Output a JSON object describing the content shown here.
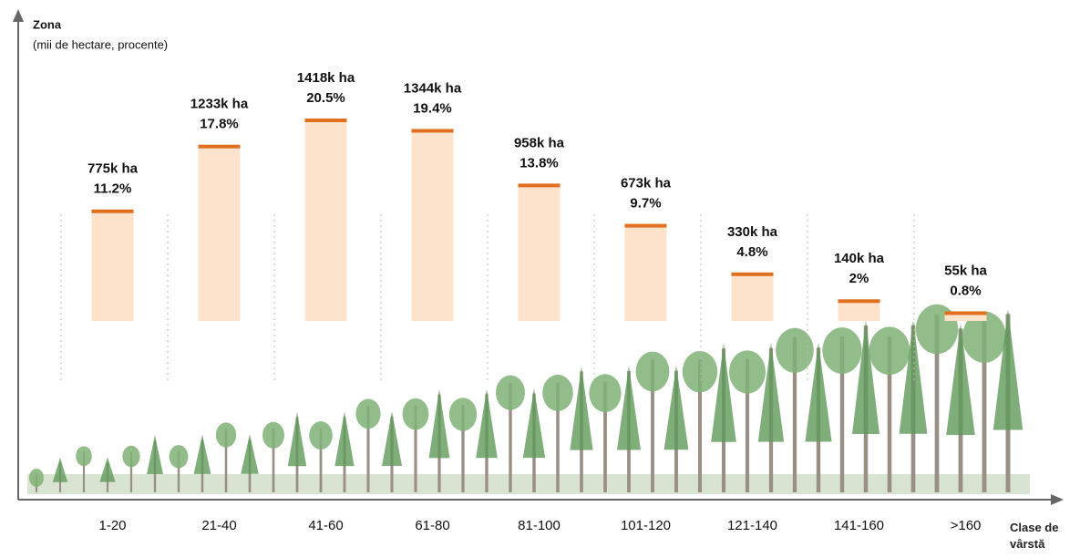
{
  "chart_data": {
    "type": "bar",
    "title": "Zona",
    "subtitle": "(mii de hectare, procente)",
    "xlabel": "Clase de vârstă",
    "categories": [
      "1-20",
      "21-40",
      "41-60",
      "61-80",
      "81-100",
      "101-120",
      "121-140",
      "141-160",
      ">160"
    ],
    "values": [
      775,
      1233,
      1418,
      1344,
      958,
      673,
      330,
      140,
      55
    ],
    "value_labels": [
      "775k ha",
      "1233k ha",
      "1418k ha",
      "1344k ha",
      "958k ha",
      "673k ha",
      "330k ha",
      "140k ha",
      "55k ha"
    ],
    "percentages": [
      11.2,
      17.8,
      20.5,
      19.4,
      13.8,
      9.7,
      4.8,
      2,
      0.8
    ],
    "percentage_labels": [
      "11.2%",
      "17.8%",
      "20.5%",
      "19.4%",
      "13.8%",
      "9.7%",
      "4.8%",
      "2%",
      "0.8%"
    ],
    "color": "#fde3cc",
    "top_color": "#e07020"
  }
}
